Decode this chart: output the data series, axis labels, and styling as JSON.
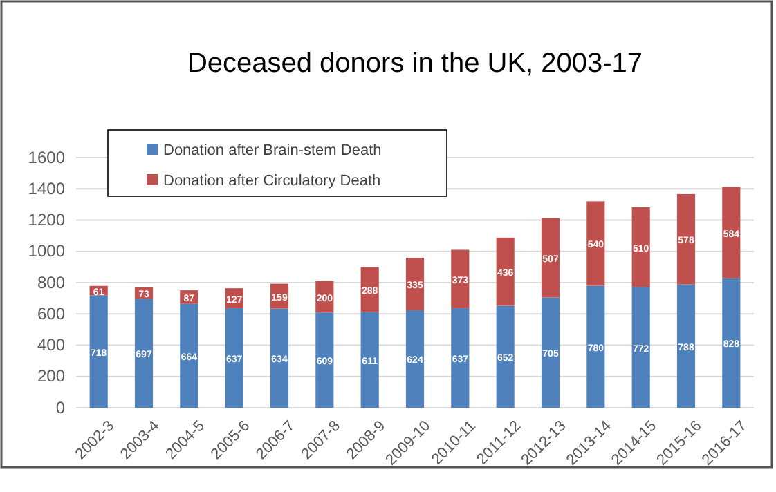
{
  "chart_data": {
    "type": "bar",
    "title": "Deceased donors in the UK, 2003-17",
    "categories": [
      "2002-3",
      "2003-4",
      "2004-5",
      "2005-6",
      "2006-7",
      "2007-8",
      "2008-9",
      "2009-10",
      "2010-11",
      "2011-12",
      "2012-13",
      "2013-14",
      "2014-15",
      "2015-16",
      "2016-17"
    ],
    "series": [
      {
        "name": "Donation after Brain-stem Death",
        "color": "#4f81bd",
        "values": [
          718,
          697,
          664,
          637,
          634,
          609,
          611,
          624,
          637,
          652,
          705,
          780,
          772,
          788,
          828
        ]
      },
      {
        "name": "Donation after Circulatory Death",
        "color": "#c0504d",
        "values": [
          61,
          73,
          87,
          127,
          159,
          200,
          288,
          335,
          373,
          436,
          507,
          540,
          510,
          578,
          584
        ]
      }
    ],
    "stacked": true,
    "data_labels": true,
    "ylim": [
      0,
      1600
    ],
    "yticks": [
      0,
      200,
      400,
      600,
      800,
      1000,
      1200,
      1400,
      1600
    ],
    "grid": "y",
    "legend": "top left"
  }
}
